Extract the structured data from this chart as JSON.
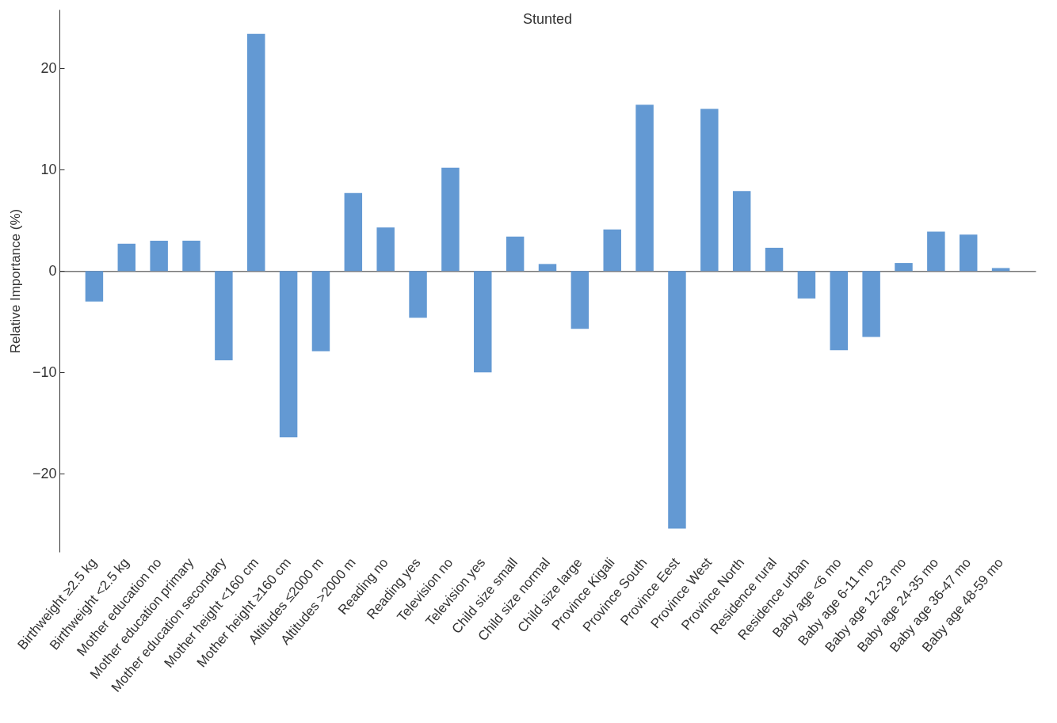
{
  "chart_data": {
    "type": "bar",
    "title": "Stunted",
    "ylabel": "Relative Importance (%)",
    "categories": [
      "Birthweight ≥2.5 kg",
      "Birthweight <2.5 kg",
      "Mother education no",
      "Mother education primary",
      "Mother education secondary",
      "Mother height <160 cm",
      "Mother height ≥160 cm",
      "Altitudes ≤2000 m",
      "Altitudes >2000 m",
      "Reading no",
      "Reading yes",
      "Television no",
      "Television yes",
      "Child size small",
      "Child size normal",
      "Child size large",
      "Province Kigali",
      "Province South",
      "Province Eest",
      "Province West",
      "Province North",
      "Residence rural",
      "Residence urban",
      "Baby age <6 mo",
      "Baby age 6-11 mo",
      "Baby age 12-23 mo",
      "Baby age 24-35 mo",
      "Baby age 36-47 mo",
      "Baby age 48-59 mo"
    ],
    "values": [
      -3.0,
      2.7,
      3.0,
      3.0,
      -8.8,
      23.4,
      -16.4,
      -7.9,
      7.7,
      4.3,
      -4.6,
      10.2,
      -10.0,
      3.4,
      0.7,
      -5.7,
      4.1,
      16.4,
      -25.4,
      16.0,
      7.9,
      2.3,
      -2.7,
      -7.8,
      -6.5,
      0.8,
      3.9,
      3.6,
      0.3
    ],
    "color": "#6399d3",
    "ylim": [
      -27.7,
      25.8
    ],
    "yticks": [
      -20,
      -10,
      0,
      10,
      20
    ]
  }
}
